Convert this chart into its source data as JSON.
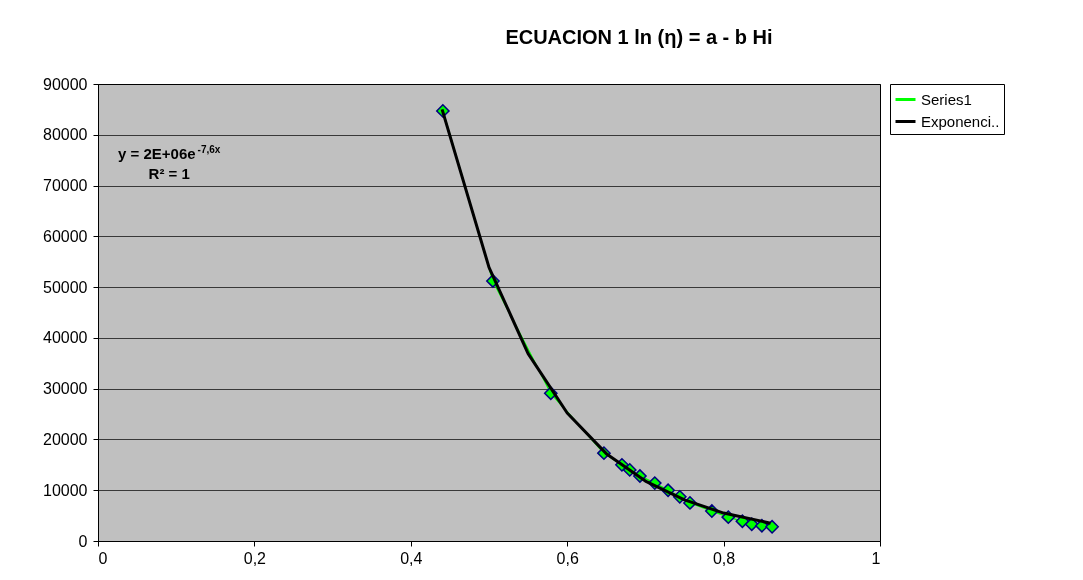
{
  "chart_data": {
    "type": "line",
    "title": "ECUACION 1 ln (η) = a - b  Hi",
    "annotations": [
      "y = 2E+06e$^{-7,6x}$",
      "R² = 1"
    ],
    "xlim": [
      0,
      1
    ],
    "xticks": [
      {
        "value": 0,
        "label": "0"
      },
      {
        "value": 0.2,
        "label": "0,2"
      },
      {
        "value": 0.4,
        "label": "0,4"
      },
      {
        "value": 0.6,
        "label": "0,6"
      },
      {
        "value": 0.8,
        "label": "0,8"
      },
      {
        "value": 1,
        "label": "1"
      }
    ],
    "ylim": [
      0,
      90000
    ],
    "yticks": [
      0,
      10000,
      20000,
      30000,
      40000,
      50000,
      60000,
      70000,
      80000,
      90000
    ],
    "grid": "y",
    "legend": "right",
    "marker": "diamond",
    "series": [
      {
        "name": "Series1",
        "color": "#00ff00",
        "x": [
          0.441,
          0.505,
          0.579,
          0.647,
          0.67,
          0.68,
          0.693,
          0.712,
          0.729,
          0.744,
          0.757,
          0.785,
          0.806,
          0.824,
          0.836,
          0.849,
          0.862
        ],
        "values": [
          84700,
          51200,
          29100,
          17300,
          15000,
          14000,
          12800,
          11400,
          10000,
          8700,
          7500,
          5900,
          4700,
          3900,
          3300,
          3000,
          2800
        ]
      },
      {
        "name": "Exponenci..",
        "type": "line",
        "marker": "none",
        "color": "#000000",
        "x": [
          0.44,
          0.5,
          0.55,
          0.6,
          0.65,
          0.7,
          0.75,
          0.8,
          0.86
        ],
        "values": [
          85000,
          53900,
          36900,
          25200,
          17200,
          11800,
          8100,
          5500,
          3500
        ]
      }
    ]
  }
}
